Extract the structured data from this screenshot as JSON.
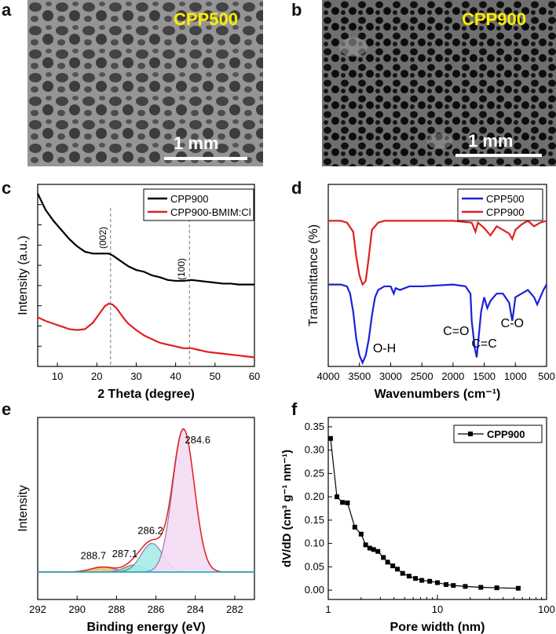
{
  "panels": {
    "a": {
      "letter": "a",
      "label": "CPP500",
      "scale": "1 mm"
    },
    "b": {
      "letter": "b",
      "label": "CPP900",
      "scale": "1 mm"
    },
    "c": {
      "letter": "c"
    },
    "d": {
      "letter": "d"
    },
    "e": {
      "letter": "e"
    },
    "f": {
      "letter": "f"
    }
  },
  "colors": {
    "black": "#000000",
    "red": "#e02020",
    "blue": "#1a22d8"
  },
  "chart_data": [
    {
      "id": "c",
      "type": "line",
      "xlabel": "2 Theta (degree)",
      "ylabel": "Intensity (a.u.)",
      "xlim": [
        5,
        60
      ],
      "xticks": [
        10,
        20,
        30,
        40,
        50,
        60
      ],
      "legend": [
        "CPP900",
        "CPP900-BMIM:Cl"
      ],
      "annotations": [
        {
          "text": "(002)",
          "x": 23.5
        },
        {
          "text": "(100)",
          "x": 43.5
        }
      ],
      "series": [
        {
          "name": "CPP900",
          "color": "#000000",
          "x": [
            5,
            7,
            9,
            11,
            13,
            15,
            17,
            19,
            21,
            23,
            24,
            26,
            28,
            30,
            32,
            34,
            36,
            38,
            40,
            42,
            44,
            46,
            48,
            50,
            52,
            54,
            56,
            58,
            60
          ],
          "y": [
            0.95,
            0.86,
            0.8,
            0.75,
            0.7,
            0.66,
            0.63,
            0.62,
            0.62,
            0.62,
            0.61,
            0.58,
            0.55,
            0.53,
            0.52,
            0.5,
            0.49,
            0.475,
            0.47,
            0.47,
            0.475,
            0.47,
            0.465,
            0.46,
            0.455,
            0.455,
            0.45,
            0.45,
            0.45
          ]
        },
        {
          "name": "CPP900-BMIM:Cl",
          "color": "#e02020",
          "x": [
            5,
            7,
            9,
            11,
            13,
            15,
            17,
            19,
            20,
            21,
            22,
            23,
            24,
            25,
            26,
            27,
            28,
            30,
            32,
            34,
            36,
            38,
            40,
            42,
            44,
            46,
            48,
            50,
            52,
            54,
            56,
            58,
            60
          ],
          "y": [
            0.27,
            0.25,
            0.235,
            0.22,
            0.205,
            0.2,
            0.205,
            0.24,
            0.27,
            0.3,
            0.33,
            0.345,
            0.34,
            0.32,
            0.29,
            0.26,
            0.235,
            0.2,
            0.17,
            0.15,
            0.13,
            0.12,
            0.11,
            0.1,
            0.1,
            0.09,
            0.08,
            0.075,
            0.07,
            0.065,
            0.06,
            0.055,
            0.05
          ]
        }
      ]
    },
    {
      "id": "d",
      "type": "line",
      "xlabel": "Wavenumbers (cm⁻¹)",
      "ylabel": "Transmittance (%)",
      "xlim": [
        4000,
        500
      ],
      "xticks": [
        4000,
        3500,
        3000,
        2500,
        2000,
        1500,
        1000,
        500
      ],
      "legend": [
        "CPP500",
        "CPP900"
      ],
      "annotations": [
        {
          "text": "O-H",
          "x": 3100
        },
        {
          "text": "C=O",
          "x": 1950
        },
        {
          "text": "C=C",
          "x": 1500
        },
        {
          "text": "C-O",
          "x": 1100
        }
      ],
      "series": [
        {
          "name": "CPP900",
          "color": "#e02020",
          "x": [
            4000,
            3800,
            3700,
            3600,
            3550,
            3500,
            3450,
            3400,
            3350,
            3300,
            3200,
            3100,
            3000,
            2900,
            2500,
            2000,
            1700,
            1640,
            1600,
            1500,
            1400,
            1300,
            1100,
            1050,
            1000,
            900,
            800,
            700,
            600,
            500
          ],
          "y": [
            0.8,
            0.8,
            0.79,
            0.74,
            0.6,
            0.5,
            0.45,
            0.47,
            0.6,
            0.75,
            0.79,
            0.8,
            0.8,
            0.8,
            0.8,
            0.8,
            0.79,
            0.74,
            0.79,
            0.76,
            0.72,
            0.77,
            0.73,
            0.7,
            0.75,
            0.78,
            0.8,
            0.77,
            0.79,
            0.8
          ]
        },
        {
          "name": "CPP500",
          "color": "#1a22d8",
          "x": [
            4000,
            3800,
            3700,
            3650,
            3600,
            3550,
            3500,
            3450,
            3400,
            3350,
            3300,
            3250,
            3200,
            3100,
            3000,
            2950,
            2920,
            2850,
            2700,
            2500,
            2000,
            1800,
            1720,
            1700,
            1650,
            1620,
            1600,
            1550,
            1500,
            1450,
            1400,
            1350,
            1300,
            1200,
            1100,
            1050,
            1030,
            1000,
            900,
            800,
            700,
            650,
            600,
            550,
            500
          ],
          "y": [
            0.45,
            0.45,
            0.44,
            0.4,
            0.3,
            0.15,
            0.06,
            0.02,
            0.06,
            0.15,
            0.28,
            0.38,
            0.42,
            0.44,
            0.44,
            0.4,
            0.43,
            0.42,
            0.44,
            0.44,
            0.45,
            0.44,
            0.4,
            0.25,
            0.1,
            0.05,
            0.12,
            0.3,
            0.38,
            0.32,
            0.36,
            0.38,
            0.4,
            0.4,
            0.35,
            0.25,
            0.3,
            0.38,
            0.4,
            0.42,
            0.38,
            0.34,
            0.38,
            0.42,
            0.45
          ]
        }
      ]
    },
    {
      "id": "e",
      "type": "area",
      "xlabel": "Binding energy (eV)",
      "ylabel": "Intensity",
      "xlim": [
        292,
        281
      ],
      "xticks": [
        292,
        290,
        288,
        286,
        284,
        282
      ],
      "peaks": [
        {
          "label": "284.6",
          "center": 284.6,
          "height": 1.0,
          "color": "#f5dcf5"
        },
        {
          "label": "286.2",
          "center": 286.2,
          "height": 0.2,
          "color": "#a8ecec"
        },
        {
          "label": "287.1",
          "center": 287.1,
          "height": 0.05,
          "color": "#9ad89a"
        },
        {
          "label": "288.7",
          "center": 288.7,
          "height": 0.035,
          "color": "#f0c070"
        }
      ]
    },
    {
      "id": "f",
      "type": "line",
      "xscale": "log",
      "xlabel": "Pore width (nm)",
      "ylabel": "dV/dD (cm³ g⁻¹ nm⁻¹)",
      "xlim": [
        1,
        100
      ],
      "ylim": [
        -0.02,
        0.37
      ],
      "xticks": [
        "1",
        "10",
        "100"
      ],
      "yticks": [
        "0.00",
        "0.05",
        "0.10",
        "0.15",
        "0.20",
        "0.25",
        "0.30",
        "0.35"
      ],
      "legend": [
        "CPP900"
      ],
      "series": [
        {
          "name": "CPP900",
          "color": "#000000",
          "x": [
            1.05,
            1.2,
            1.35,
            1.5,
            1.75,
            2.0,
            2.2,
            2.4,
            2.6,
            2.85,
            3.2,
            3.5,
            3.9,
            4.3,
            4.8,
            5.5,
            6.3,
            7.2,
            8.5,
            10,
            12,
            14,
            18,
            25,
            35,
            55
          ],
          "y": [
            0.325,
            0.2,
            0.188,
            0.187,
            0.135,
            0.12,
            0.097,
            0.09,
            0.087,
            0.083,
            0.07,
            0.06,
            0.052,
            0.045,
            0.036,
            0.03,
            0.025,
            0.021,
            0.019,
            0.016,
            0.012,
            0.01,
            0.008,
            0.006,
            0.005,
            0.004
          ]
        }
      ]
    }
  ]
}
